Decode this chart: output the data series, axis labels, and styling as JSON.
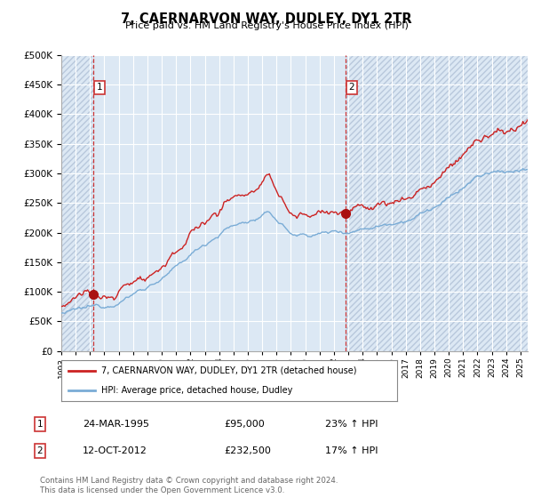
{
  "title": "7, CAERNARVON WAY, DUDLEY, DY1 2TR",
  "subtitle": "Price paid vs. HM Land Registry's House Price Index (HPI)",
  "legend_line1": "7, CAERNARVON WAY, DUDLEY, DY1 2TR (detached house)",
  "legend_line2": "HPI: Average price, detached house, Dudley",
  "sale1_date": "24-MAR-1995",
  "sale1_price": 95000,
  "sale1_pct": "23%",
  "sale2_date": "12-OCT-2012",
  "sale2_price": 232500,
  "sale2_pct": "17%",
  "hpi_color": "#7aacd6",
  "price_color": "#cc2222",
  "marker_color": "#aa1111",
  "vline_color": "#cc3333",
  "bg_color": "#dce8f4",
  "hatch_color": "#b8c8dc",
  "grid_color": "#ffffff",
  "footer": "Contains HM Land Registry data © Crown copyright and database right 2024.\nThis data is licensed under the Open Government Licence v3.0.",
  "ylim": [
    0,
    500000
  ],
  "yticks": [
    0,
    50000,
    100000,
    150000,
    200000,
    250000,
    300000,
    350000,
    400000,
    450000,
    500000
  ],
  "sale1_x": 1995.23,
  "sale2_x": 2012.79,
  "xlim_start": 1993.0,
  "xlim_end": 2025.5
}
